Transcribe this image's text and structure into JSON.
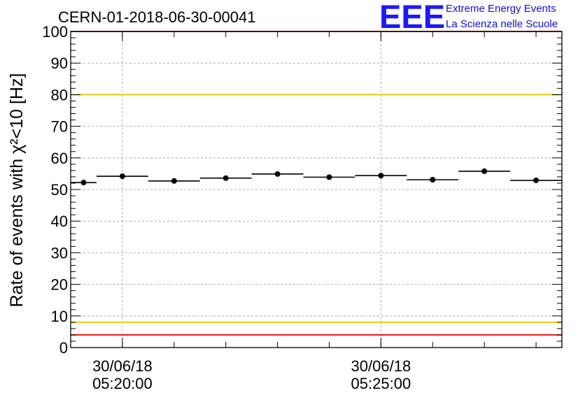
{
  "chart_data": {
    "type": "scatter",
    "title": "CERN-01-2018-06-30-00041",
    "ylabel": "Rate of events with χ²<10 [Hz]",
    "ylim": [
      0,
      100
    ],
    "yticks": [
      0,
      10,
      20,
      30,
      40,
      50,
      60,
      70,
      80,
      90,
      100
    ],
    "xticks": [
      {
        "date": "30/06/18",
        "time": "05:20:00"
      },
      {
        "date": "30/06/18",
        "time": "05:25:00"
      }
    ],
    "grid": true,
    "reference_lines": [
      {
        "y": 100,
        "color": "#ee1111"
      },
      {
        "y": 80,
        "color": "#e8cc10"
      },
      {
        "y": 8,
        "color": "#e8cc10"
      },
      {
        "y": 4,
        "color": "#ee1111"
      }
    ],
    "series": [
      {
        "x_bins": [
          [
            "05:19:00",
            "05:19:30"
          ],
          [
            "05:19:30",
            "05:20:30"
          ],
          [
            "05:20:30",
            "05:21:30"
          ],
          [
            "05:21:30",
            "05:22:30"
          ],
          [
            "05:22:30",
            "05:23:30"
          ],
          [
            "05:23:30",
            "05:24:30"
          ],
          [
            "05:24:30",
            "05:25:30"
          ],
          [
            "05:25:30",
            "05:26:30"
          ],
          [
            "05:26:30",
            "05:27:30"
          ],
          [
            "05:27:30",
            "05:28:30"
          ]
        ],
        "values": [
          52.2,
          54.2,
          52.7,
          53.6,
          54.9,
          53.9,
          54.4,
          53.1,
          55.8,
          52.9
        ]
      }
    ]
  },
  "logo": {
    "letters": "EEE",
    "line1": "Extreme Energy Events",
    "line2": "La Scienza nelle Scuole",
    "color": "#1a1aff"
  }
}
